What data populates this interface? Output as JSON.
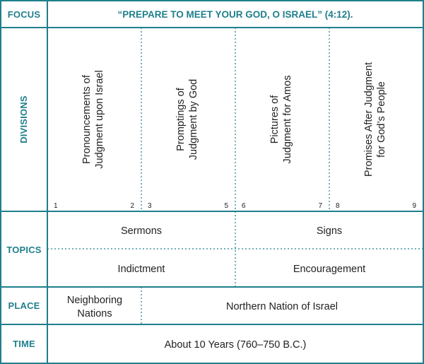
{
  "row_headers": {
    "focus": "FOCUS",
    "divisions": "DIVISIONS",
    "topics": "TOPICS",
    "place": "PLACE",
    "time": "TIME"
  },
  "focus": {
    "text": "“PREPARE TO MEET YOUR GOD, O ISRAEL” (4:12)."
  },
  "divisions": [
    {
      "line1": "Pronouncements of",
      "line2": "Judgment upon Israel",
      "start": "1",
      "end": "2"
    },
    {
      "line1": "Promptings of",
      "line2": "Judgment by God",
      "start": "3",
      "end": "5"
    },
    {
      "line1": "Pictures of",
      "line2": "Judgment for Amos",
      "start": "6",
      "end": "7"
    },
    {
      "line1": "Promises After Judgment",
      "line2": "for God’s People",
      "start": "8",
      "end": "9"
    }
  ],
  "topics": {
    "row1": [
      "Sermons",
      "Signs"
    ],
    "row2": [
      "Indictment",
      "Encouragement"
    ]
  },
  "place": {
    "left_line1": "Neighboring",
    "left_line2": "Nations",
    "right": "Northern Nation of Israel"
  },
  "time": {
    "text": "About 10 Years (760–750 B.C.)"
  },
  "colors": {
    "border": "#1f7f8c",
    "header_text": "#1f7f8c",
    "body_text": "#222222"
  }
}
